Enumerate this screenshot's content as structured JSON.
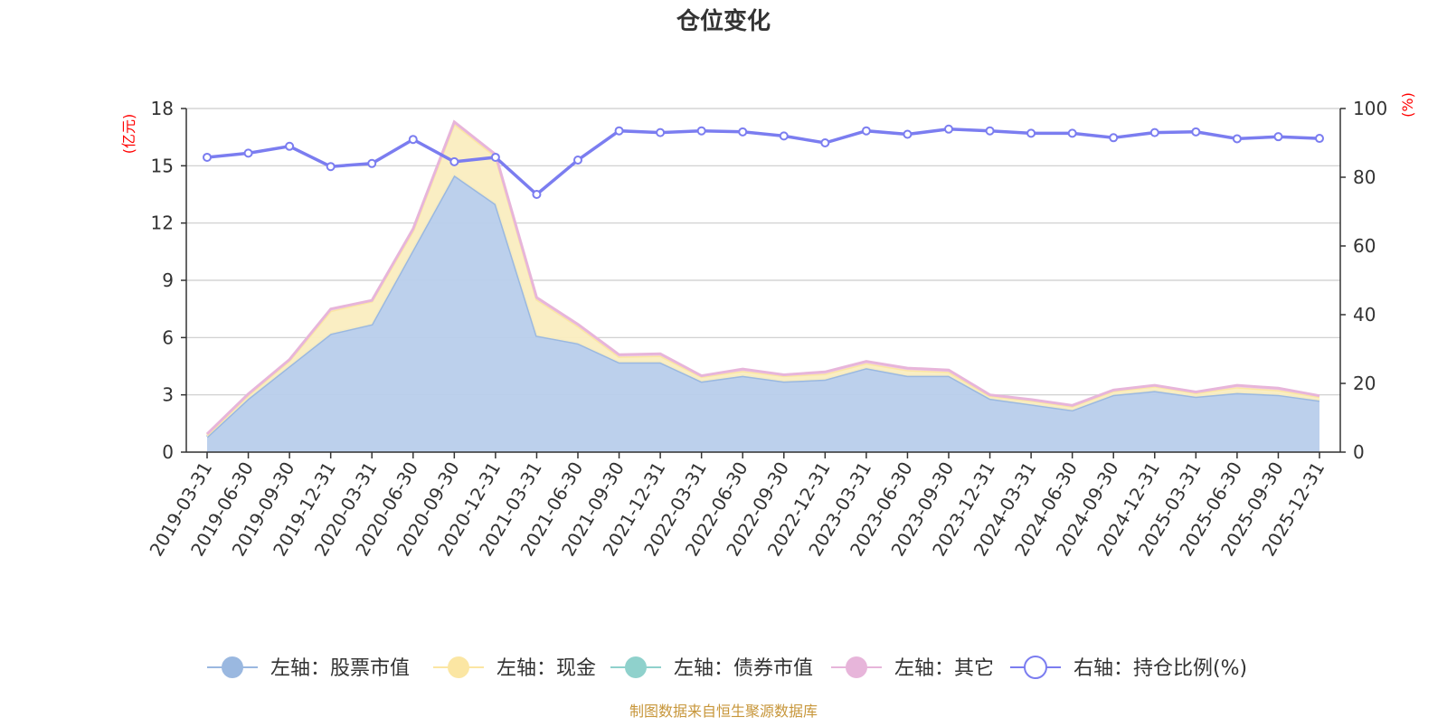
{
  "chart_data": {
    "type": "area",
    "title": "仓位变化",
    "left_unit": "(亿元)",
    "right_unit": "(%)",
    "ylim_left": [
      0,
      18
    ],
    "yticks_left": [
      0,
      3,
      6,
      9,
      12,
      15,
      18
    ],
    "ylim_right": [
      0,
      100
    ],
    "yticks_right": [
      0,
      20,
      40,
      60,
      80,
      100
    ],
    "categories": [
      "2019-03-31",
      "2019-06-30",
      "2019-09-30",
      "2019-12-31",
      "2020-03-31",
      "2020-06-30",
      "2020-09-30",
      "2020-12-31",
      "2021-03-31",
      "2021-06-30",
      "2021-09-30",
      "2021-12-31",
      "2022-03-31",
      "2022-06-30",
      "2022-09-30",
      "2022-12-31",
      "2023-03-31",
      "2023-06-30",
      "2023-09-30",
      "2023-12-31",
      "2024-03-31",
      "2024-06-30",
      "2024-09-30",
      "2024-12-31",
      "2025-03-31",
      "2025-06-30",
      "2025-09-30",
      "2025-12-31"
    ],
    "series": [
      {
        "name": "左轴：股票市值",
        "axis": "left",
        "stack": true,
        "color": "#9ab8e0",
        "fill": "#b8cdeb",
        "values": [
          0.8,
          2.8,
          4.5,
          6.2,
          6.7,
          10.6,
          14.5,
          13.0,
          6.1,
          5.7,
          4.7,
          4.7,
          3.7,
          4.0,
          3.7,
          3.8,
          4.4,
          4.0,
          4.0,
          2.8,
          2.5,
          2.2,
          3.0,
          3.2,
          2.9,
          3.1,
          3.0,
          2.7
        ]
      },
      {
        "name": "左轴：现金",
        "axis": "left",
        "stack": true,
        "color": "#fbe6a3",
        "fill": "#faedc0",
        "values": [
          0.1,
          0.2,
          0.3,
          1.2,
          1.2,
          1.0,
          2.7,
          2.5,
          1.9,
          0.9,
          0.3,
          0.35,
          0.25,
          0.25,
          0.3,
          0.3,
          0.25,
          0.3,
          0.2,
          0.15,
          0.2,
          0.2,
          0.2,
          0.25,
          0.2,
          0.3,
          0.25,
          0.2
        ]
      },
      {
        "name": "左轴：债券市值",
        "axis": "left",
        "stack": true,
        "color": "#8fd1cc",
        "fill": "#b8e2de",
        "values": [
          0,
          0,
          0,
          0,
          0,
          0,
          0,
          0,
          0,
          0,
          0,
          0,
          0,
          0,
          0,
          0,
          0,
          0,
          0,
          0,
          0,
          0,
          0,
          0,
          0,
          0,
          0,
          0
        ]
      },
      {
        "name": "左轴：其它",
        "axis": "left",
        "stack": true,
        "color": "#e7b5da",
        "fill": "#f0cde7",
        "values": [
          0.05,
          0.05,
          0.05,
          0.1,
          0.05,
          0.1,
          0.1,
          0.1,
          0.1,
          0.1,
          0.1,
          0.1,
          0.05,
          0.1,
          0.05,
          0.1,
          0.1,
          0.1,
          0.1,
          0.05,
          0.05,
          0.05,
          0.05,
          0.05,
          0.05,
          0.1,
          0.1,
          0.05
        ]
      },
      {
        "name": "右轴：持仓比例(%)",
        "axis": "right",
        "type": "line",
        "color": "#7b7df0",
        "values": [
          85.8,
          87.0,
          89.0,
          83.1,
          84.0,
          91.0,
          84.5,
          85.8,
          75.0,
          85.0,
          93.5,
          93.0,
          93.5,
          93.2,
          92.0,
          90.0,
          93.5,
          92.5,
          94.0,
          93.5,
          92.8,
          92.8,
          91.5,
          93.0,
          93.2,
          91.2,
          91.8,
          91.3
        ]
      }
    ]
  },
  "footer": {
    "source": "制图数据来自恒生聚源数据库"
  }
}
